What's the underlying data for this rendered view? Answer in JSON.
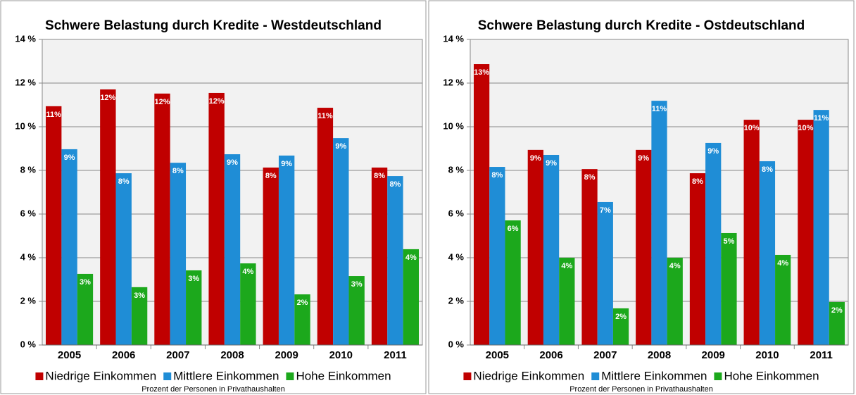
{
  "chart_data": [
    {
      "type": "bar",
      "title": "Schwere Belastung durch Kredite - Westdeutschland",
      "subtitle": "Prozent der Personen in Privathaushalten",
      "categories": [
        "2005",
        "2006",
        "2007",
        "2008",
        "2009",
        "2010",
        "2011"
      ],
      "series": [
        {
          "name": "Niedrige Einkommen",
          "color": "#c00000",
          "values": [
            10.94,
            11.71,
            11.52,
            11.55,
            8.13,
            10.87,
            8.13
          ],
          "value_labels": [
            "11%",
            "12%",
            "12%",
            "12%",
            "8%",
            "11%",
            "8%"
          ]
        },
        {
          "name": "Mittlere Einkommen",
          "color": "#1f8dd6",
          "values": [
            8.97,
            7.87,
            8.35,
            8.74,
            8.68,
            9.48,
            7.74
          ],
          "value_labels": [
            "9%",
            "8%",
            "8%",
            "9%",
            "9%",
            "9%",
            "8%"
          ]
        },
        {
          "name": "Hohe Einkommen",
          "color": "#1ca81c",
          "values": [
            3.26,
            2.65,
            3.42,
            3.74,
            2.32,
            3.16,
            4.39
          ],
          "value_labels": [
            "3%",
            "3%",
            "3%",
            "4%",
            "2%",
            "3%",
            "4%"
          ]
        }
      ],
      "ylim": [
        0,
        14
      ],
      "yticks": [
        {
          "value": 0,
          "label": "0 %"
        },
        {
          "value": 2,
          "label": "2 %"
        },
        {
          "value": 4,
          "label": "4 %"
        },
        {
          "value": 6,
          "label": "6 %"
        },
        {
          "value": 8,
          "label": "8 %"
        },
        {
          "value": 10,
          "label": "10 %"
        },
        {
          "value": 12,
          "label": "12 %"
        },
        {
          "value": 14,
          "label": "14 %"
        }
      ],
      "grid": true
    },
    {
      "type": "bar",
      "title": "Schwere Belastung durch Kredite - Ostdeutschland",
      "subtitle": "Prozent der Personen in Privathaushalten",
      "categories": [
        "2005",
        "2006",
        "2007",
        "2008",
        "2009",
        "2010",
        "2011"
      ],
      "series": [
        {
          "name": "Niedrige Einkommen",
          "color": "#c00000",
          "values": [
            12.87,
            8.94,
            8.06,
            8.94,
            7.87,
            10.32,
            10.32
          ],
          "value_labels": [
            "13%",
            "9%",
            "8%",
            "9%",
            "8%",
            "10%",
            "10%"
          ]
        },
        {
          "name": "Mittlere Einkommen",
          "color": "#1f8dd6",
          "values": [
            8.16,
            8.71,
            6.55,
            11.19,
            9.26,
            8.42,
            10.77
          ],
          "value_labels": [
            "8%",
            "9%",
            "7%",
            "11%",
            "9%",
            "8%",
            "11%"
          ]
        },
        {
          "name": "Hohe Einkommen",
          "color": "#1ca81c",
          "values": [
            5.71,
            4.0,
            1.68,
            4.0,
            5.13,
            4.13,
            1.97
          ],
          "value_labels": [
            "6%",
            "4%",
            "2%",
            "4%",
            "5%",
            "4%",
            "2%"
          ]
        }
      ],
      "ylim": [
        0,
        14
      ],
      "yticks": [
        {
          "value": 0,
          "label": "0 %"
        },
        {
          "value": 2,
          "label": "2 %"
        },
        {
          "value": 4,
          "label": "4 %"
        },
        {
          "value": 6,
          "label": "6 %"
        },
        {
          "value": 8,
          "label": "8 %"
        },
        {
          "value": 10,
          "label": "10 %"
        },
        {
          "value": 12,
          "label": "12 %"
        },
        {
          "value": 14,
          "label": "14 %"
        }
      ],
      "grid": true
    }
  ]
}
